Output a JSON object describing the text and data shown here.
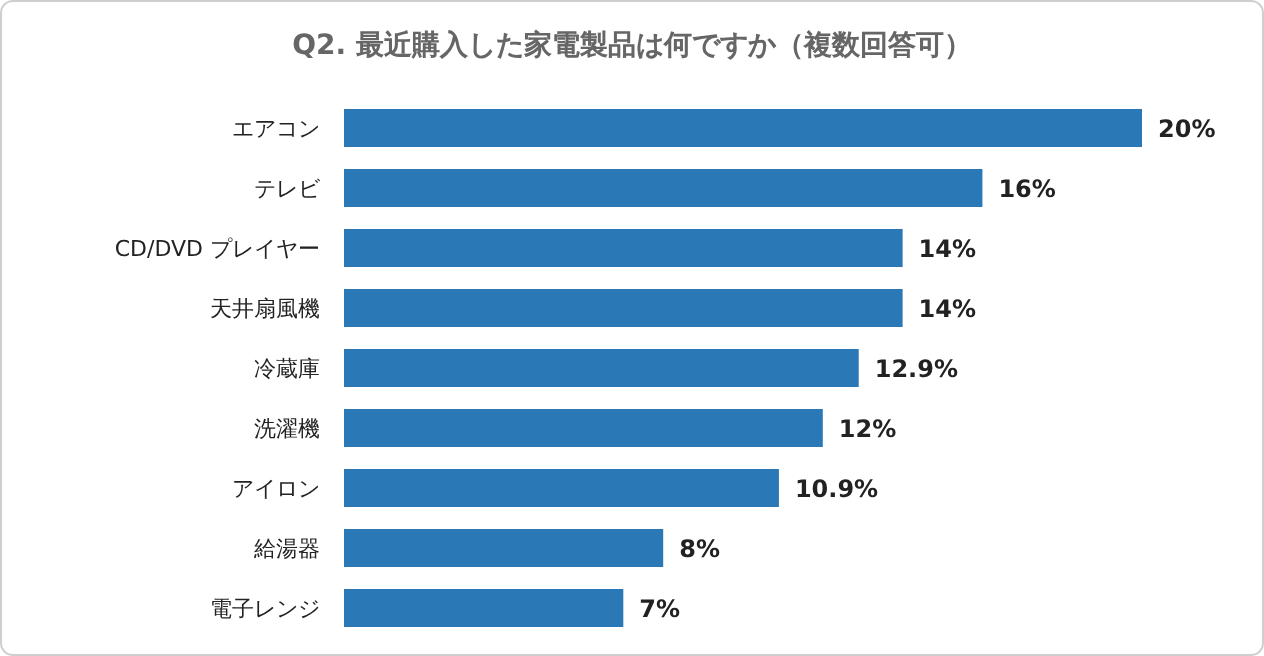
{
  "chart_data": {
    "type": "bar",
    "orientation": "horizontal",
    "title": "Q2. 最近購入した家電製品は何ですか（複数回答可）",
    "categories": [
      "エアコン",
      "テレビ",
      "CD/DVD プレイヤー",
      "天井扇風機",
      "冷蔵庫",
      "洗濯機",
      "アイロン",
      "給湯器",
      "電子レンジ"
    ],
    "values": [
      20,
      16,
      14,
      14,
      12.9,
      12,
      10.9,
      8,
      7
    ],
    "value_labels": [
      "20%",
      "16%",
      "14%",
      "14%",
      "12.9%",
      "12%",
      "10.9%",
      "8%",
      "7%"
    ],
    "color": "#2a78b6"
  }
}
